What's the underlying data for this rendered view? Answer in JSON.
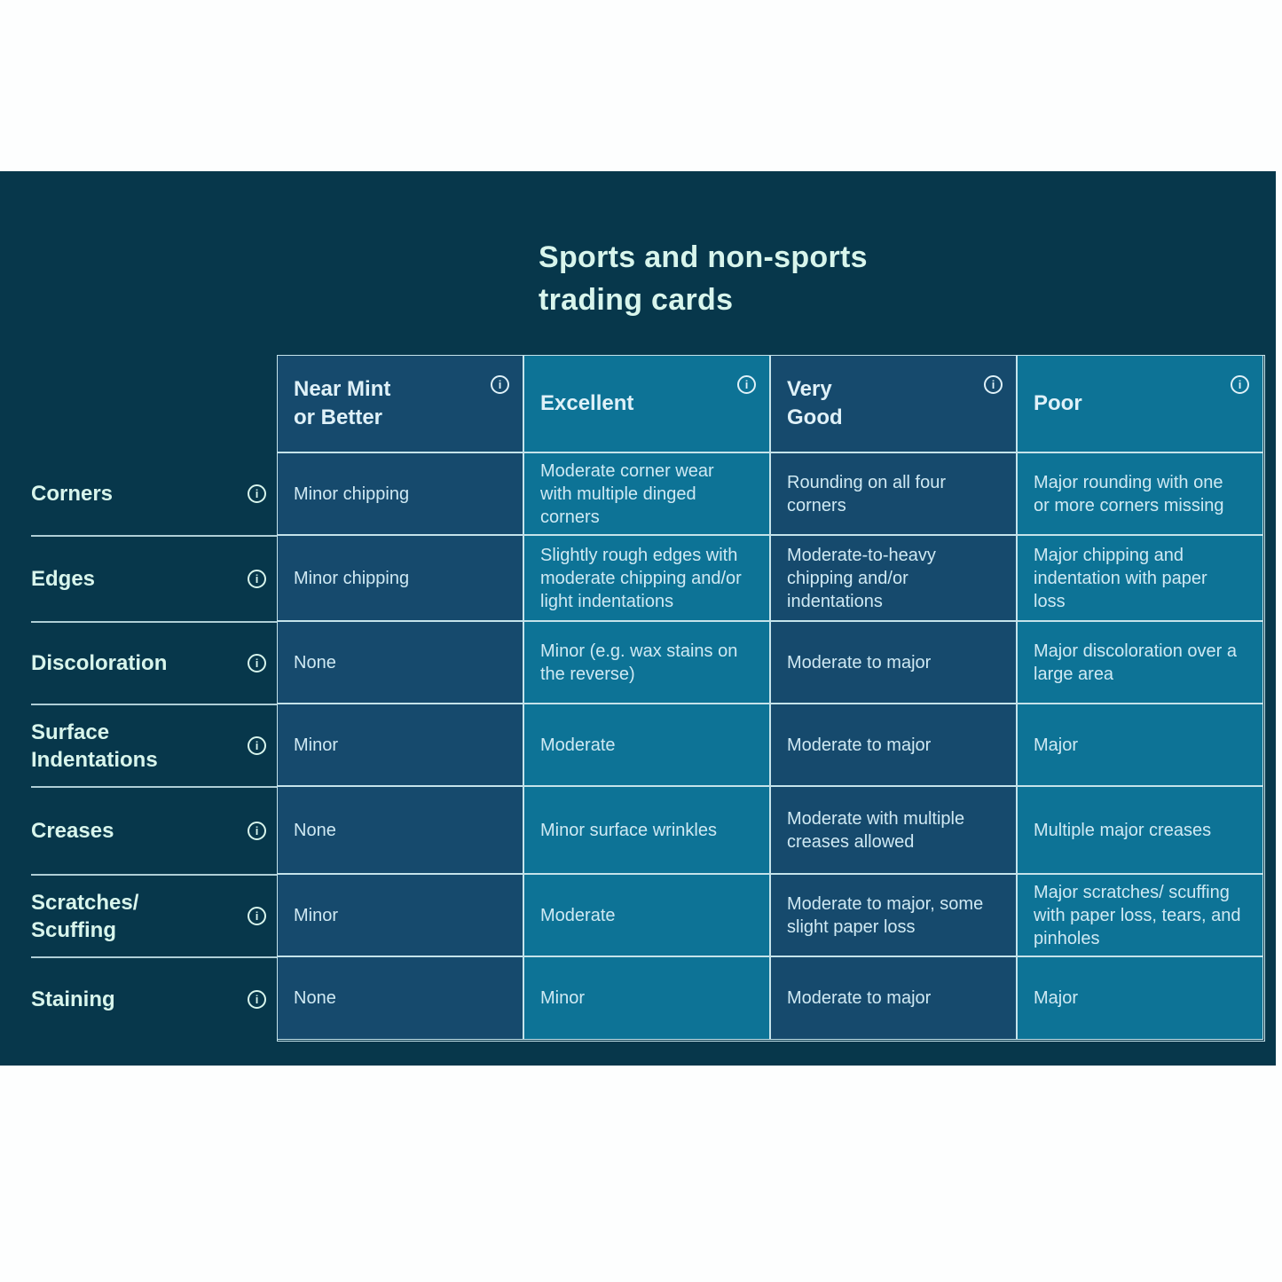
{
  "colors": {
    "page_background": "#fdfefe",
    "panel_background": "#07374b",
    "dark_cell": "#164a6d",
    "teal_cell": "#0d7396",
    "border": "#c5e3ea",
    "title_text": "#d8f5ec",
    "cell_text": "#cfe9f3"
  },
  "icons": {
    "info": "i"
  },
  "chart_data": {
    "type": "table",
    "title": "Sports and non-sports trading cards",
    "title_lines": [
      "Sports and non-sports",
      "trading cards"
    ],
    "columns": [
      {
        "label": "Near Mint or Better",
        "lines": [
          "Near Mint",
          "or Better"
        ],
        "tone": "dark",
        "has_info_icon": true
      },
      {
        "label": "Excellent",
        "lines": [
          "Excellent"
        ],
        "tone": "teal",
        "has_info_icon": true
      },
      {
        "label": "Very Good",
        "lines": [
          "Very",
          "Good"
        ],
        "tone": "dark",
        "has_info_icon": true
      },
      {
        "label": "Poor",
        "lines": [
          "Poor"
        ],
        "tone": "teal",
        "has_info_icon": true
      }
    ],
    "rows": [
      {
        "label": "Corners",
        "label_lines": [
          "Corners"
        ],
        "has_info_icon": true,
        "cells": [
          "Minor chipping",
          "Moderate corner wear with multiple dinged corners",
          "Rounding on all four corners",
          "Major rounding with one or more corners missing"
        ]
      },
      {
        "label": "Edges",
        "label_lines": [
          "Edges"
        ],
        "has_info_icon": true,
        "cells": [
          "Minor chipping",
          "Slightly rough edges with moderate chipping and/or light indentations",
          "Moderate-to-heavy chipping and/or indentations",
          "Major chipping and indentation with paper loss"
        ]
      },
      {
        "label": "Discoloration",
        "label_lines": [
          "Discoloration"
        ],
        "has_info_icon": true,
        "cells": [
          "None",
          "Minor (e.g. wax stains on the reverse)",
          "Moderate to major",
          "Major discoloration over a large area"
        ]
      },
      {
        "label": "Surface Indentations",
        "label_lines": [
          "Surface",
          "Indentations"
        ],
        "has_info_icon": true,
        "cells": [
          "Minor",
          "Moderate",
          "Moderate to major",
          "Major"
        ]
      },
      {
        "label": "Creases",
        "label_lines": [
          "Creases"
        ],
        "has_info_icon": true,
        "cells": [
          "None",
          "Minor surface wrinkles",
          "Moderate with multiple creases allowed",
          "Multiple major creases"
        ]
      },
      {
        "label": "Scratches/Scuffing",
        "label_lines": [
          "Scratches/",
          "Scuffing"
        ],
        "has_info_icon": true,
        "cells": [
          "Minor",
          "Moderate",
          "Moderate to major, some slight paper loss",
          "Major scratches/ scuffing with paper loss, tears, and pinholes"
        ]
      },
      {
        "label": "Staining",
        "label_lines": [
          "Staining"
        ],
        "has_info_icon": true,
        "cells": [
          "None",
          "Minor",
          "Moderate to major",
          "Major"
        ]
      }
    ]
  }
}
